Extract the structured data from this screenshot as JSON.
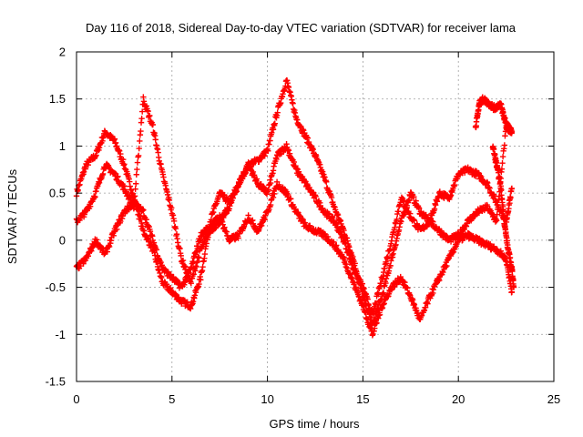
{
  "chart_data": {
    "type": "scatter",
    "title": "Day 116 of 2018, Sidereal Day-to-day VTEC variation (SDTVAR) for receiver lama",
    "xlabel": "GPS time / hours",
    "ylabel": "SDTVAR / TECUs",
    "xlim": [
      0,
      25
    ],
    "ylim": [
      -1.5,
      2
    ],
    "xticks": [
      "0",
      "5",
      "10",
      "15",
      "20",
      "25"
    ],
    "yticks": [
      "-1.5",
      "-1",
      "-0.5",
      "0",
      "0.5",
      "1",
      "1.5",
      "2"
    ],
    "grid": true,
    "marker": "plus",
    "color": "#ff0000",
    "series": [
      {
        "x": [
          0.0,
          0.5,
          1.0,
          1.5,
          2.0,
          2.5,
          3.0,
          3.5,
          4.0,
          4.5,
          5.0,
          5.5,
          6.0,
          6.5,
          7.0,
          7.5,
          8.0,
          8.5,
          9.0,
          9.5,
          10.0,
          10.5,
          11.0,
          11.5,
          12.0,
          12.5,
          13.0,
          13.5,
          14.0,
          14.5,
          15.0,
          15.5,
          16.0,
          16.5,
          17.0,
          17.5,
          18.0,
          18.5,
          19.0,
          19.5,
          20.0,
          20.5,
          21.0,
          21.5,
          22.0,
          22.5,
          22.8
        ],
        "y": [
          0.5,
          0.8,
          0.9,
          1.15,
          1.05,
          0.8,
          0.45,
          0.1,
          -0.1,
          -0.45,
          -0.55,
          -0.65,
          -0.7,
          -0.4,
          0.2,
          0.5,
          0.4,
          0.6,
          0.8,
          0.85,
          0.95,
          1.35,
          1.7,
          1.3,
          1.1,
          0.9,
          0.65,
          0.35,
          0.1,
          -0.2,
          -0.6,
          -0.9,
          -0.6,
          -0.2,
          0.2,
          0.5,
          0.3,
          0.2,
          0.5,
          0.45,
          0.7,
          0.75,
          0.7,
          0.6,
          0.4,
          0.2,
          0.55
        ]
      },
      {
        "x": [
          0.0,
          0.5,
          1.0,
          1.5,
          2.0,
          2.5,
          3.0,
          3.5,
          4.0,
          4.5,
          5.0,
          5.5,
          6.0,
          6.5,
          7.0,
          7.5,
          8.0,
          8.5,
          9.0,
          9.5,
          10.0,
          10.5,
          11.0,
          11.5,
          12.0,
          12.5,
          13.0,
          13.5,
          14.0,
          14.5,
          15.0,
          15.5,
          16.0,
          16.5,
          17.0,
          17.5,
          18.0,
          18.5,
          19.0,
          19.5,
          20.0,
          20.5,
          21.0,
          21.5,
          22.0,
          22.5,
          22.8
        ],
        "y": [
          0.2,
          0.3,
          0.5,
          0.8,
          0.7,
          0.55,
          0.35,
          1.5,
          1.2,
          0.7,
          0.3,
          -0.2,
          -0.45,
          -0.1,
          0.1,
          0.2,
          0.35,
          0.6,
          0.8,
          0.6,
          0.5,
          0.9,
          1.0,
          0.75,
          0.6,
          0.45,
          0.3,
          0.2,
          0.0,
          -0.3,
          -0.5,
          -0.8,
          -0.4,
          0.0,
          0.45,
          0.25,
          0.1,
          0.2,
          0.1,
          0.0,
          0.05,
          0.2,
          0.3,
          0.35,
          0.2,
          1.2,
          1.15
        ]
      },
      {
        "x": [
          0.0,
          0.5,
          1.0,
          1.5,
          2.0,
          2.5,
          3.0,
          3.5,
          4.0,
          4.5,
          5.0,
          5.5,
          6.0,
          6.5,
          7.0,
          7.5,
          8.0,
          8.5,
          9.0,
          9.5,
          10.0,
          10.5,
          11.0,
          11.5,
          12.0,
          12.5,
          13.0,
          13.5,
          14.0,
          14.5,
          15.0,
          15.5,
          16.0,
          16.5,
          17.0,
          17.5,
          18.0,
          18.5,
          19.0,
          19.5,
          20.0,
          20.5,
          21.0,
          21.5,
          22.0,
          22.5,
          22.8
        ],
        "y": [
          -0.3,
          -0.2,
          0.0,
          -0.15,
          0.1,
          0.3,
          0.4,
          0.3,
          0.0,
          -0.3,
          -0.4,
          -0.5,
          -0.3,
          0.05,
          0.15,
          0.25,
          0.0,
          0.05,
          0.25,
          0.1,
          0.3,
          0.6,
          0.5,
          0.3,
          0.15,
          0.1,
          0.05,
          -0.05,
          -0.2,
          -0.45,
          -0.7,
          -1.0,
          -0.7,
          -0.5,
          -0.4,
          -0.6,
          -0.85,
          -0.6,
          -0.4,
          -0.2,
          0.0,
          0.05,
          0.0,
          -0.05,
          -0.1,
          -0.2,
          -0.55
        ]
      },
      {
        "x": [
          20.9,
          21.1,
          21.3,
          21.6,
          21.9,
          22.2,
          22.4,
          22.6,
          22.8
        ],
        "y": [
          1.2,
          1.45,
          1.5,
          1.45,
          1.4,
          1.45,
          1.3,
          1.2,
          1.15
        ]
      },
      {
        "x": [
          21.8,
          22.0,
          22.2,
          22.4,
          22.6,
          22.8,
          22.9
        ],
        "y": [
          1.0,
          0.8,
          0.6,
          0.2,
          -0.1,
          -0.3,
          -0.5
        ]
      }
    ]
  }
}
